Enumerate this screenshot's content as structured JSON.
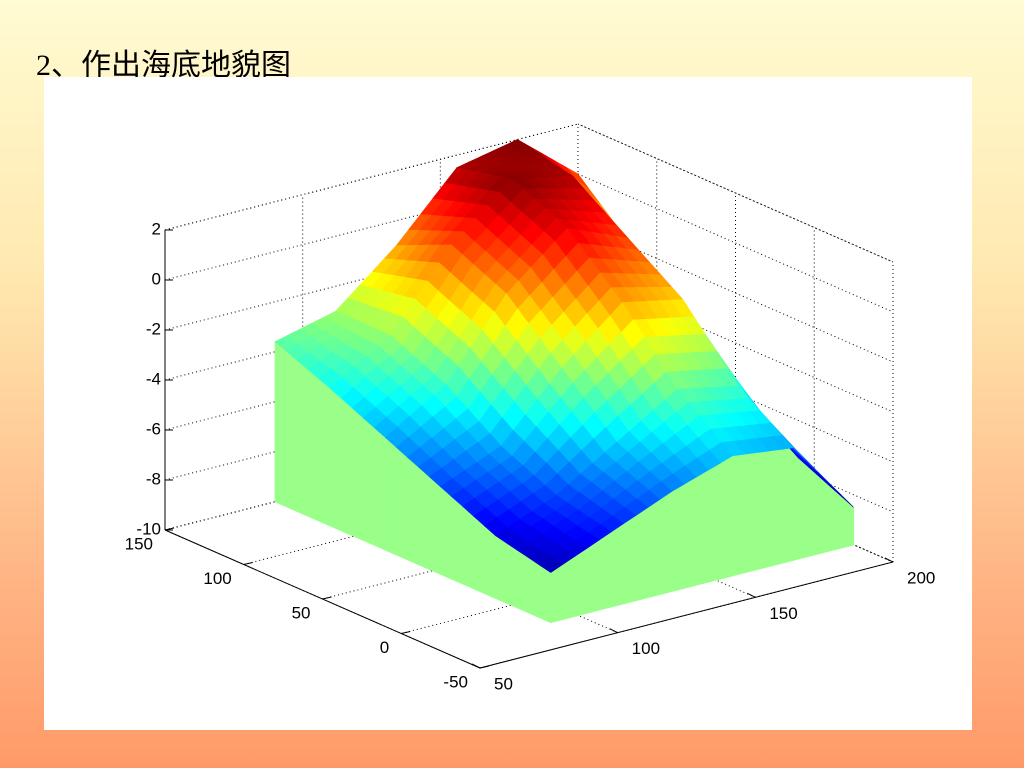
{
  "title": "2、作出海底地貌图",
  "chart_data": {
    "type": "surface3d",
    "x": [
      90,
      112,
      134,
      156,
      178,
      200
    ],
    "y": [
      -25,
      10,
      45,
      80,
      115,
      150
    ],
    "z": [
      [
        -8,
        -7,
        -6,
        -5.2,
        -5.5,
        -8.5
      ],
      [
        -7.5,
        -6.5,
        -5,
        -3.5,
        -4,
        -7.5
      ],
      [
        -6.5,
        -5.5,
        -3,
        -1,
        -1.5,
        -6
      ],
      [
        -5.5,
        -4,
        -1,
        1,
        0,
        -4
      ],
      [
        -4.5,
        -3,
        0,
        2,
        1.5,
        -2
      ],
      [
        -3.6,
        -3,
        -1,
        1.5,
        2,
        0
      ]
    ],
    "xlim": [
      50,
      200
    ],
    "ylim": [
      -50,
      150
    ],
    "zlim": [
      -10,
      2
    ],
    "xticks": [
      50,
      100,
      150,
      200
    ],
    "yticks": [
      -50,
      0,
      50,
      100,
      150
    ],
    "zticks": [
      -10,
      -8,
      -6,
      -4,
      -2,
      0,
      2
    ],
    "grid": true,
    "colormap": "jet",
    "base_color": "#99ff88"
  }
}
